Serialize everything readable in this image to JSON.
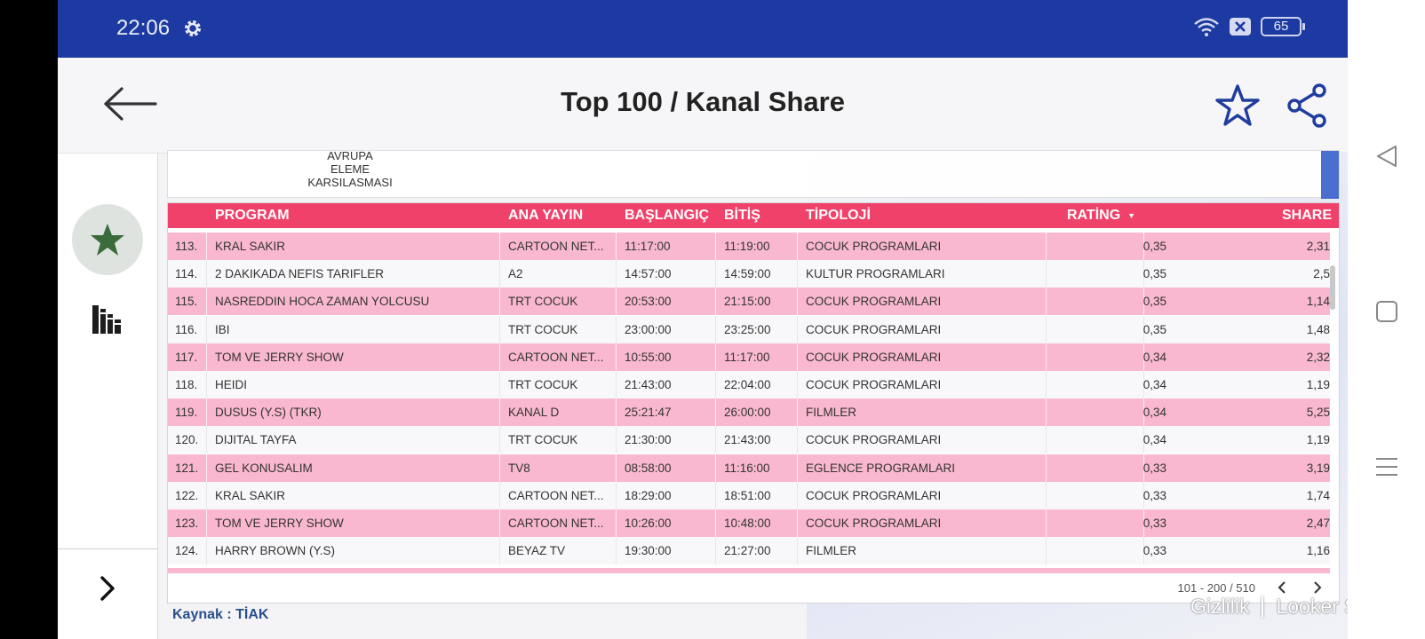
{
  "status_bar": {
    "time": "22:06",
    "battery": "65",
    "icons": [
      "gear-icon",
      "wifi-icon",
      "sim-off-icon",
      "battery-icon"
    ]
  },
  "app_bar": {
    "title": "Top 100  / Kanal Share",
    "icons": [
      "back-arrow-icon",
      "star-outline-icon",
      "share-icon"
    ]
  },
  "sidebar": {
    "icons": [
      "star-filled-icon",
      "bar-chart-icon",
      "chevron-right-icon"
    ]
  },
  "previous_card": {
    "lines": [
      "AVRUPA",
      "ELEME",
      "KARSILASMASI"
    ]
  },
  "table": {
    "headers": {
      "program": "PROGRAM",
      "ana_yayin": "ANA YAYIN",
      "baslangic": "BAŞLANGIÇ",
      "bitis": "BİTİŞ",
      "tipoloji": "TİPOLOJİ",
      "rating": "RATİNG",
      "share": "SHARE"
    },
    "sort_indicator": "▼",
    "rows": [
      {
        "no": "113.",
        "program": "KRAL SAKIR",
        "kanal": "CARTOON NET...",
        "baslangic": "11:17:00",
        "bitis": "11:19:00",
        "tipoloji": "COCUK PROGRAMLARI",
        "rating": "0,35",
        "share": "2,31"
      },
      {
        "no": "114.",
        "program": "2 DAKIKADA NEFIS TARIFLER",
        "kanal": "A2",
        "baslangic": "14:57:00",
        "bitis": "14:59:00",
        "tipoloji": "KULTUR PROGRAMLARI",
        "rating": "0,35",
        "share": "2,5"
      },
      {
        "no": "115.",
        "program": "NASREDDIN HOCA ZAMAN YOLCUSU",
        "kanal": "TRT COCUK",
        "baslangic": "20:53:00",
        "bitis": "21:15:00",
        "tipoloji": "COCUK PROGRAMLARI",
        "rating": "0,35",
        "share": "1,14"
      },
      {
        "no": "116.",
        "program": "IBI",
        "kanal": "TRT COCUK",
        "baslangic": "23:00:00",
        "bitis": "23:25:00",
        "tipoloji": "COCUK PROGRAMLARI",
        "rating": "0,35",
        "share": "1,48"
      },
      {
        "no": "117.",
        "program": "TOM VE JERRY SHOW",
        "kanal": "CARTOON NET...",
        "baslangic": "10:55:00",
        "bitis": "11:17:00",
        "tipoloji": "COCUK PROGRAMLARI",
        "rating": "0,34",
        "share": "2,32"
      },
      {
        "no": "118.",
        "program": "HEIDI",
        "kanal": "TRT COCUK",
        "baslangic": "21:43:00",
        "bitis": "22:04:00",
        "tipoloji": "COCUK PROGRAMLARI",
        "rating": "0,34",
        "share": "1,19"
      },
      {
        "no": "119.",
        "program": "DUSUS (Y.S) (TKR)",
        "kanal": "KANAL D",
        "baslangic": "25:21:47",
        "bitis": "26:00:00",
        "tipoloji": "FILMLER",
        "rating": "0,34",
        "share": "5,25"
      },
      {
        "no": "120.",
        "program": "DIJITAL TAYFA",
        "kanal": "TRT COCUK",
        "baslangic": "21:30:00",
        "bitis": "21:43:00",
        "tipoloji": "COCUK PROGRAMLARI",
        "rating": "0,34",
        "share": "1,19"
      },
      {
        "no": "121.",
        "program": "GEL KONUSALIM",
        "kanal": "TV8",
        "baslangic": "08:58:00",
        "bitis": "11:16:00",
        "tipoloji": "EGLENCE PROGRAMLARI",
        "rating": "0,33",
        "share": "3,19"
      },
      {
        "no": "122.",
        "program": "KRAL SAKIR",
        "kanal": "CARTOON NET...",
        "baslangic": "18:29:00",
        "bitis": "18:51:00",
        "tipoloji": "COCUK PROGRAMLARI",
        "rating": "0,33",
        "share": "1,74"
      },
      {
        "no": "123.",
        "program": "TOM VE JERRY SHOW",
        "kanal": "CARTOON NET...",
        "baslangic": "10:26:00",
        "bitis": "10:48:00",
        "tipoloji": "COCUK PROGRAMLARI",
        "rating": "0,33",
        "share": "2,47"
      },
      {
        "no": "124.",
        "program": "HARRY BROWN (Y.S)",
        "kanal": "BEYAZ TV",
        "baslangic": "19:30:00",
        "bitis": "21:27:00",
        "tipoloji": "FILMLER",
        "rating": "0,33",
        "share": "1,16"
      }
    ],
    "pagination": "101 - 200 / 510",
    "pagination_icons": [
      "chevron-left-icon",
      "chevron-right-icon"
    ]
  },
  "source": "Kaynak : TİAK",
  "watermark": {
    "left": "Gizlilik",
    "right": "Looker Studio"
  },
  "nav_bar": {
    "icons": [
      "nav-back-icon",
      "nav-home-icon",
      "nav-menu-icon"
    ]
  },
  "colors": {
    "status_bar": "#1d3aa3",
    "header_row": "#f0416a",
    "pink_row": "#f9b8cf",
    "accent_icon": "#1f3c9e",
    "favorite_star": "#3a6b3a",
    "source_text": "#2a4f8c"
  }
}
